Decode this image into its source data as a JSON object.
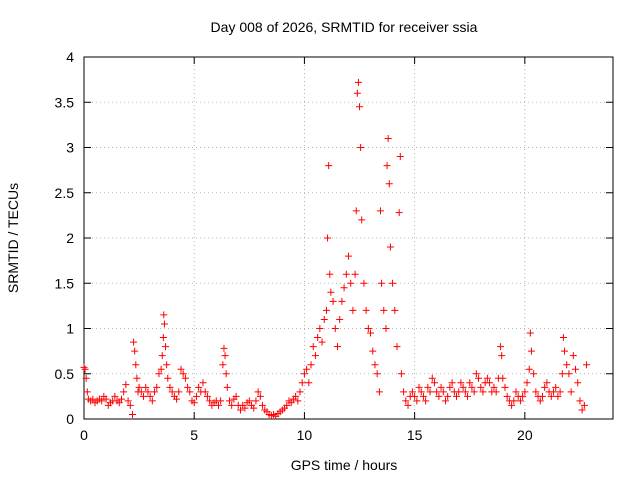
{
  "chart_data": {
    "type": "scatter",
    "title": "Day 008 of 2026, SRMTID for receiver ssia",
    "xlabel": "GPS time / hours",
    "ylabel": "SRMTID / TECUs",
    "xlim": [
      0,
      24
    ],
    "ylim": [
      0,
      4
    ],
    "xticks": [
      0,
      5,
      10,
      15,
      20
    ],
    "yticks": [
      0,
      0.5,
      1,
      1.5,
      2,
      2.5,
      3,
      3.5,
      4
    ],
    "grid": true,
    "marker": "+",
    "series": [
      {
        "name": "SRMTID",
        "color": "#ff0000",
        "points": [
          [
            0.0,
            0.57
          ],
          [
            0.05,
            0.55
          ],
          [
            0.1,
            0.45
          ],
          [
            0.15,
            0.3
          ],
          [
            0.2,
            0.22
          ],
          [
            0.3,
            0.2
          ],
          [
            0.4,
            0.22
          ],
          [
            0.5,
            0.18
          ],
          [
            0.6,
            0.2
          ],
          [
            0.7,
            0.22
          ],
          [
            0.8,
            0.2
          ],
          [
            0.9,
            0.25
          ],
          [
            1.0,
            0.22
          ],
          [
            1.1,
            0.15
          ],
          [
            1.2,
            0.18
          ],
          [
            1.3,
            0.2
          ],
          [
            1.4,
            0.25
          ],
          [
            1.5,
            0.2
          ],
          [
            1.6,
            0.18
          ],
          [
            1.7,
            0.22
          ],
          [
            1.8,
            0.3
          ],
          [
            1.9,
            0.38
          ],
          [
            2.0,
            0.2
          ],
          [
            2.1,
            0.15
          ],
          [
            2.2,
            0.05
          ],
          [
            2.25,
            0.85
          ],
          [
            2.3,
            0.75
          ],
          [
            2.35,
            0.6
          ],
          [
            2.4,
            0.45
          ],
          [
            2.45,
            0.3
          ],
          [
            2.5,
            0.35
          ],
          [
            2.6,
            0.3
          ],
          [
            2.7,
            0.25
          ],
          [
            2.8,
            0.35
          ],
          [
            2.9,
            0.3
          ],
          [
            3.0,
            0.25
          ],
          [
            3.1,
            0.2
          ],
          [
            3.2,
            0.3
          ],
          [
            3.3,
            0.35
          ],
          [
            3.4,
            0.5
          ],
          [
            3.5,
            0.55
          ],
          [
            3.55,
            0.7
          ],
          [
            3.6,
            0.9
          ],
          [
            3.62,
            1.15
          ],
          [
            3.65,
            1.05
          ],
          [
            3.7,
            0.8
          ],
          [
            3.75,
            0.6
          ],
          [
            3.8,
            0.45
          ],
          [
            3.9,
            0.35
          ],
          [
            4.0,
            0.3
          ],
          [
            4.1,
            0.25
          ],
          [
            4.2,
            0.22
          ],
          [
            4.3,
            0.3
          ],
          [
            4.4,
            0.55
          ],
          [
            4.5,
            0.5
          ],
          [
            4.6,
            0.45
          ],
          [
            4.7,
            0.35
          ],
          [
            4.8,
            0.3
          ],
          [
            4.9,
            0.2
          ],
          [
            5.0,
            0.18
          ],
          [
            5.1,
            0.25
          ],
          [
            5.2,
            0.35
          ],
          [
            5.3,
            0.3
          ],
          [
            5.4,
            0.4
          ],
          [
            5.5,
            0.3
          ],
          [
            5.6,
            0.25
          ],
          [
            5.7,
            0.2
          ],
          [
            5.8,
            0.15
          ],
          [
            5.9,
            0.18
          ],
          [
            6.0,
            0.2
          ],
          [
            6.1,
            0.15
          ],
          [
            6.2,
            0.2
          ],
          [
            6.3,
            0.6
          ],
          [
            6.35,
            0.78
          ],
          [
            6.4,
            0.7
          ],
          [
            6.45,
            0.5
          ],
          [
            6.5,
            0.35
          ],
          [
            6.6,
            0.2
          ],
          [
            6.7,
            0.15
          ],
          [
            6.8,
            0.22
          ],
          [
            6.9,
            0.25
          ],
          [
            7.0,
            0.15
          ],
          [
            7.1,
            0.1
          ],
          [
            7.2,
            0.15
          ],
          [
            7.3,
            0.12
          ],
          [
            7.4,
            0.18
          ],
          [
            7.5,
            0.2
          ],
          [
            7.6,
            0.15
          ],
          [
            7.7,
            0.12
          ],
          [
            7.8,
            0.2
          ],
          [
            7.9,
            0.3
          ],
          [
            8.0,
            0.25
          ],
          [
            8.1,
            0.15
          ],
          [
            8.2,
            0.1
          ],
          [
            8.3,
            0.08
          ],
          [
            8.4,
            0.05
          ],
          [
            8.5,
            0.04
          ],
          [
            8.6,
            0.05
          ],
          [
            8.7,
            0.03
          ],
          [
            8.8,
            0.06
          ],
          [
            8.9,
            0.08
          ],
          [
            9.0,
            0.1
          ],
          [
            9.1,
            0.12
          ],
          [
            9.2,
            0.15
          ],
          [
            9.3,
            0.2
          ],
          [
            9.4,
            0.18
          ],
          [
            9.5,
            0.22
          ],
          [
            9.6,
            0.25
          ],
          [
            9.7,
            0.2
          ],
          [
            9.8,
            0.3
          ],
          [
            9.9,
            0.4
          ],
          [
            10.0,
            0.5
          ],
          [
            10.1,
            0.55
          ],
          [
            10.2,
            0.4
          ],
          [
            10.3,
            0.6
          ],
          [
            10.4,
            0.8
          ],
          [
            10.5,
            0.7
          ],
          [
            10.6,
            0.9
          ],
          [
            10.7,
            1.0
          ],
          [
            10.8,
            0.85
          ],
          [
            10.9,
            1.1
          ],
          [
            11.0,
            1.2
          ],
          [
            11.05,
            2.0
          ],
          [
            11.1,
            2.8
          ],
          [
            11.15,
            1.6
          ],
          [
            11.2,
            1.4
          ],
          [
            11.3,
            1.3
          ],
          [
            11.4,
            1.0
          ],
          [
            11.5,
            0.8
          ],
          [
            11.6,
            1.1
          ],
          [
            11.7,
            1.3
          ],
          [
            11.8,
            1.45
          ],
          [
            11.9,
            1.6
          ],
          [
            12.0,
            1.8
          ],
          [
            12.1,
            1.5
          ],
          [
            12.2,
            1.2
          ],
          [
            12.3,
            1.6
          ],
          [
            12.35,
            2.3
          ],
          [
            12.4,
            3.6
          ],
          [
            12.45,
            3.72
          ],
          [
            12.5,
            3.45
          ],
          [
            12.55,
            3.0
          ],
          [
            12.6,
            2.2
          ],
          [
            12.7,
            1.5
          ],
          [
            12.8,
            1.2
          ],
          [
            12.9,
            1.0
          ],
          [
            13.0,
            0.95
          ],
          [
            13.1,
            0.75
          ],
          [
            13.2,
            0.6
          ],
          [
            13.3,
            0.5
          ],
          [
            13.4,
            0.3
          ],
          [
            13.45,
            2.3
          ],
          [
            13.5,
            1.5
          ],
          [
            13.6,
            1.2
          ],
          [
            13.7,
            1.0
          ],
          [
            13.75,
            2.8
          ],
          [
            13.8,
            3.1
          ],
          [
            13.85,
            2.6
          ],
          [
            13.9,
            1.9
          ],
          [
            14.0,
            1.5
          ],
          [
            14.1,
            1.2
          ],
          [
            14.2,
            0.8
          ],
          [
            14.3,
            2.28
          ],
          [
            14.35,
            2.9
          ],
          [
            14.4,
            0.5
          ],
          [
            14.5,
            0.3
          ],
          [
            14.6,
            0.2
          ],
          [
            14.7,
            0.15
          ],
          [
            14.8,
            0.25
          ],
          [
            14.9,
            0.3
          ],
          [
            15.0,
            0.25
          ],
          [
            15.1,
            0.2
          ],
          [
            15.2,
            0.35
          ],
          [
            15.3,
            0.3
          ],
          [
            15.4,
            0.25
          ],
          [
            15.5,
            0.2
          ],
          [
            15.6,
            0.35
          ],
          [
            15.7,
            0.3
          ],
          [
            15.8,
            0.45
          ],
          [
            15.9,
            0.4
          ],
          [
            16.0,
            0.3
          ],
          [
            16.1,
            0.25
          ],
          [
            16.2,
            0.35
          ],
          [
            16.3,
            0.3
          ],
          [
            16.4,
            0.2
          ],
          [
            16.5,
            0.25
          ],
          [
            16.6,
            0.35
          ],
          [
            16.7,
            0.4
          ],
          [
            16.8,
            0.3
          ],
          [
            16.9,
            0.25
          ],
          [
            17.0,
            0.3
          ],
          [
            17.1,
            0.4
          ],
          [
            17.2,
            0.35
          ],
          [
            17.3,
            0.3
          ],
          [
            17.4,
            0.25
          ],
          [
            17.5,
            0.4
          ],
          [
            17.6,
            0.35
          ],
          [
            17.7,
            0.3
          ],
          [
            17.8,
            0.5
          ],
          [
            17.9,
            0.45
          ],
          [
            18.0,
            0.35
          ],
          [
            18.1,
            0.3
          ],
          [
            18.2,
            0.4
          ],
          [
            18.3,
            0.45
          ],
          [
            18.4,
            0.4
          ],
          [
            18.5,
            0.3
          ],
          [
            18.6,
            0.35
          ],
          [
            18.7,
            0.3
          ],
          [
            18.8,
            0.45
          ],
          [
            18.9,
            0.8
          ],
          [
            18.95,
            0.7
          ],
          [
            19.0,
            0.45
          ],
          [
            19.1,
            0.35
          ],
          [
            19.2,
            0.25
          ],
          [
            19.3,
            0.2
          ],
          [
            19.4,
            0.15
          ],
          [
            19.5,
            0.2
          ],
          [
            19.6,
            0.3
          ],
          [
            19.7,
            0.25
          ],
          [
            19.8,
            0.2
          ],
          [
            19.9,
            0.25
          ],
          [
            20.0,
            0.3
          ],
          [
            20.1,
            0.4
          ],
          [
            20.2,
            0.55
          ],
          [
            20.25,
            0.95
          ],
          [
            20.3,
            0.75
          ],
          [
            20.4,
            0.5
          ],
          [
            20.5,
            0.3
          ],
          [
            20.6,
            0.25
          ],
          [
            20.7,
            0.2
          ],
          [
            20.8,
            0.25
          ],
          [
            20.9,
            0.35
          ],
          [
            21.0,
            0.4
          ],
          [
            21.1,
            0.3
          ],
          [
            21.2,
            0.25
          ],
          [
            21.3,
            0.3
          ],
          [
            21.4,
            0.35
          ],
          [
            21.5,
            0.25
          ],
          [
            21.6,
            0.3
          ],
          [
            21.7,
            0.5
          ],
          [
            21.75,
            0.9
          ],
          [
            21.8,
            0.75
          ],
          [
            21.9,
            0.6
          ],
          [
            22.0,
            0.5
          ],
          [
            22.1,
            0.3
          ],
          [
            22.2,
            0.7
          ],
          [
            22.3,
            0.55
          ],
          [
            22.4,
            0.4
          ],
          [
            22.5,
            0.2
          ],
          [
            22.6,
            0.1
          ],
          [
            22.7,
            0.15
          ],
          [
            22.8,
            0.6
          ]
        ]
      }
    ]
  }
}
